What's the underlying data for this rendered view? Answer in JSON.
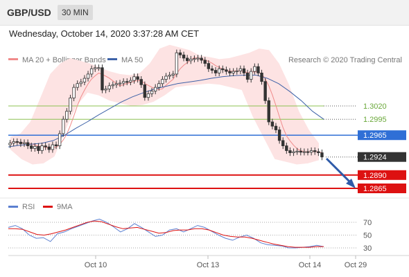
{
  "header": {
    "pair": "GBP/USD",
    "timeframe": "30 MIN",
    "datetime": "Wednesday, October 14, 2020 3:37:28 AM CET"
  },
  "legend": {
    "ma20_label": "MA 20 + Bollinger Bands",
    "ma50_label": "MA 50",
    "copyright": "Research © 2020 Trading Central",
    "rsi_label": "RSI",
    "ma9_label": "9MA"
  },
  "colors": {
    "bollinger_fill": "#fde3e3",
    "ma20": "#f08a8a",
    "ma50": "#3d62a8",
    "green_level": "#8cc152",
    "blue_level": "#2f6fd6",
    "red_level": "#dd1111",
    "current": "#333333",
    "rsi": "#5b7fd0",
    "rsi_ma": "#dd1111",
    "arrow": "#2e5aa8"
  },
  "chart_data": {
    "type": "candlestick",
    "x_ticks": [
      "Oct 10",
      "Oct 13",
      "Oct 14",
      "Oct 29"
    ],
    "price_axis_range": [
      1.282,
      1.315
    ],
    "levels": [
      {
        "price": 1.302,
        "label": "1.3020",
        "kind": "resistance"
      },
      {
        "price": 1.2995,
        "label": "1.2995",
        "kind": "resistance"
      },
      {
        "price": 1.2965,
        "label": "1.2965",
        "kind": "pivot"
      },
      {
        "price": 1.2924,
        "label": "1.2924",
        "kind": "current"
      },
      {
        "price": 1.289,
        "label": "1.2890",
        "kind": "support"
      },
      {
        "price": 1.2865,
        "label": "1.2865",
        "kind": "support"
      }
    ],
    "close_series": [
      1.295,
      1.2953,
      1.2952,
      1.2949,
      1.2951,
      1.2945,
      1.294,
      1.2944,
      1.2936,
      1.2945,
      1.2943,
      1.2938,
      1.2947,
      1.2945,
      1.2968,
      1.2995,
      1.301,
      1.3035,
      1.3055,
      1.3062,
      1.3065,
      1.3072,
      1.308,
      1.309,
      1.3092,
      1.3092,
      1.305,
      1.3052,
      1.3058,
      1.306,
      1.3062,
      1.3063,
      1.3066,
      1.3065,
      1.3068,
      1.3075,
      1.307,
      1.306,
      1.3036,
      1.3043,
      1.3048,
      1.3055,
      1.3062,
      1.307,
      1.3076,
      1.3078,
      1.308,
      1.312,
      1.3116,
      1.311,
      1.3105,
      1.3108,
      1.3109,
      1.311,
      1.3106,
      1.31,
      1.309,
      1.3087,
      1.3082,
      1.309,
      1.3088,
      1.3085,
      1.3082,
      1.3085,
      1.3086,
      1.309,
      1.3082,
      1.307,
      1.3085,
      1.3094,
      1.3082,
      1.3066,
      1.303,
      1.299,
      1.2982,
      1.2975,
      1.2955,
      1.2945,
      1.2936,
      1.2932,
      1.2934,
      1.2935,
      1.2933,
      1.2934,
      1.2933,
      1.2936,
      1.2934,
      1.2932,
      1.2924
    ],
    "ma50_series": [
      1.2943,
      1.2946,
      1.2948,
      1.295,
      1.2955,
      1.2965,
      1.2978,
      1.299,
      1.3003,
      1.3015,
      1.3027,
      1.3037,
      1.3045,
      1.3052,
      1.3057,
      1.3062,
      1.3065,
      1.3068,
      1.3072,
      1.3075,
      1.3077,
      1.3078,
      1.3078,
      1.3072,
      1.3062,
      1.3047,
      1.303,
      1.301,
      1.2995
    ],
    "bollinger_upper": [
      1.2962,
      1.2968,
      1.299,
      1.3035,
      1.308,
      1.31,
      1.311,
      1.3105,
      1.31,
      1.3092,
      1.3085,
      1.308,
      1.3078,
      1.3082,
      1.31,
      1.3128,
      1.3135,
      1.313,
      1.3125,
      1.3115,
      1.3112,
      1.3108,
      1.311,
      1.3115,
      1.312,
      1.3128,
      1.3125,
      1.31,
      1.306,
      1.301,
      1.2975,
      1.295
    ],
    "bollinger_lower": [
      1.2938,
      1.292,
      1.291,
      1.2912,
      1.2925,
      1.2975,
      1.302,
      1.3045,
      1.304,
      1.303,
      1.3025,
      1.302,
      1.3022,
      1.3028,
      1.304,
      1.3055,
      1.3058,
      1.306,
      1.3062,
      1.306,
      1.3055,
      1.305,
      1.3,
      1.296,
      1.292,
      1.2915,
      1.291,
      1.2912,
      1.2918
    ],
    "rsi": {
      "ticks": [
        70,
        50,
        30
      ],
      "values": [
        62,
        65,
        60,
        50,
        45,
        46,
        40,
        52,
        55,
        60,
        64,
        68,
        72,
        75,
        70,
        63,
        55,
        60,
        68,
        62,
        55,
        48,
        50,
        58,
        60,
        55,
        60,
        65,
        62,
        56,
        50,
        45,
        42,
        47,
        50,
        45,
        38,
        35,
        34,
        33,
        30,
        30,
        31,
        32,
        34,
        32
      ],
      "ma9": [
        60,
        60,
        59,
        55,
        51,
        50,
        52,
        55,
        58,
        62,
        66,
        70,
        72,
        71,
        67,
        63,
        60,
        61,
        62,
        59,
        56,
        53,
        54,
        57,
        58,
        58,
        60,
        60,
        58,
        54,
        50,
        48,
        47,
        47,
        45,
        42,
        39,
        36,
        34,
        32,
        31,
        31,
        31,
        32,
        32
      ]
    }
  }
}
